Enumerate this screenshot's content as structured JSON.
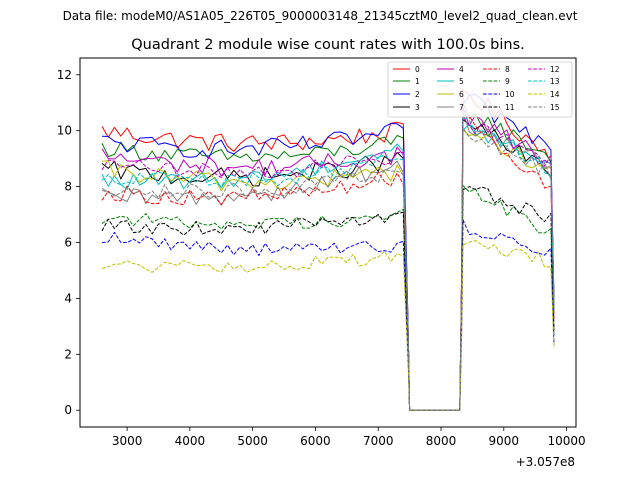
{
  "chart_data": {
    "type": "line",
    "suptitle": "Data file: modeM0/AS1A05_226T05_9000003148_21345cztM0_level2_quad_clean.evt",
    "title": "Quadrant 2 module wise count rates with 100.0s bins.",
    "xlabel": "",
    "ylabel": "",
    "x_offset_label": "+3.057e8",
    "xlim": [
      2250,
      10150
    ],
    "ylim": [
      -0.6,
      12.6
    ],
    "xticks": [
      3000,
      4000,
      5000,
      6000,
      7000,
      8000,
      9000,
      10000
    ],
    "yticks": [
      0,
      2,
      4,
      6,
      8,
      10,
      12
    ],
    "legend_location": "upper right",
    "legend_ncol": 4,
    "gap": {
      "start": 7500,
      "end": 8300,
      "value": 0
    },
    "x_segment1": [
      2600,
      7450
    ],
    "x_segment2": [
      8350,
      9800
    ],
    "series": [
      {
        "name": "0",
        "color": "#ff0000",
        "linestyle": "solid",
        "seg1_start": 10.0,
        "seg1_end": 10.0,
        "seg2_peak": 11.5,
        "seg2_end": 9.0,
        "noise": 0.35
      },
      {
        "name": "1",
        "color": "#008000",
        "linestyle": "solid",
        "seg1_start": 9.4,
        "seg1_end": 9.6,
        "seg2_peak": 10.8,
        "seg2_end": 9.0,
        "noise": 0.3
      },
      {
        "name": "2",
        "color": "#0000ff",
        "linestyle": "solid",
        "seg1_start": 9.6,
        "seg1_end": 10.0,
        "seg2_peak": 11.2,
        "seg2_end": 9.4,
        "noise": 0.35
      },
      {
        "name": "3",
        "color": "#000000",
        "linestyle": "solid",
        "seg1_start": 8.6,
        "seg1_end": 9.0,
        "seg2_peak": 10.4,
        "seg2_end": 8.4,
        "noise": 0.35
      },
      {
        "name": "4",
        "color": "#bf00bf",
        "linestyle": "solid",
        "seg1_start": 9.1,
        "seg1_end": 9.2,
        "seg2_peak": 10.6,
        "seg2_end": 8.8,
        "noise": 0.35
      },
      {
        "name": "5",
        "color": "#00bfbf",
        "linestyle": "solid",
        "seg1_start": 8.2,
        "seg1_end": 9.4,
        "seg2_peak": 10.2,
        "seg2_end": 8.8,
        "noise": 0.3
      },
      {
        "name": "6",
        "color": "#bfbf00",
        "linestyle": "solid",
        "seg1_start": 8.6,
        "seg1_end": 8.6,
        "seg2_peak": 10.0,
        "seg2_end": 8.6,
        "noise": 0.35
      },
      {
        "name": "7",
        "color": "#808080",
        "linestyle": "solid",
        "seg1_start": 7.6,
        "seg1_end": 8.8,
        "seg2_peak": 10.4,
        "seg2_end": 8.6,
        "noise": 0.35
      },
      {
        "name": "8",
        "color": "#ff0000",
        "linestyle": "dashed",
        "seg1_start": 7.8,
        "seg1_end": 8.4,
        "seg2_peak": 10.6,
        "seg2_end": 7.8,
        "noise": 0.3
      },
      {
        "name": "9",
        "color": "#008000",
        "linestyle": "dashed",
        "seg1_start": 6.9,
        "seg1_end": 7.0,
        "seg2_peak": 8.0,
        "seg2_end": 6.3,
        "noise": 0.25
      },
      {
        "name": "10",
        "color": "#0000ff",
        "linestyle": "dashed",
        "seg1_start": 6.2,
        "seg1_end": 5.9,
        "seg2_peak": 6.6,
        "seg2_end": 5.6,
        "noise": 0.25
      },
      {
        "name": "11",
        "color": "#000000",
        "linestyle": "dashed",
        "seg1_start": 6.6,
        "seg1_end": 7.0,
        "seg2_peak": 8.0,
        "seg2_end": 6.8,
        "noise": 0.25
      },
      {
        "name": "12",
        "color": "#bf00bf",
        "linestyle": "dashed",
        "seg1_start": 8.8,
        "seg1_end": 9.2,
        "seg2_peak": 10.4,
        "seg2_end": 8.8,
        "noise": 0.3
      },
      {
        "name": "13",
        "color": "#00bfbf",
        "linestyle": "dashed",
        "seg1_start": 8.4,
        "seg1_end": 9.0,
        "seg2_peak": 10.2,
        "seg2_end": 8.6,
        "noise": 0.3
      },
      {
        "name": "14",
        "color": "#bfbf00",
        "linestyle": "dashed",
        "seg1_start": 5.2,
        "seg1_end": 5.6,
        "seg2_peak": 6.0,
        "seg2_end": 5.3,
        "noise": 0.25
      },
      {
        "name": "15",
        "color": "#808080",
        "linestyle": "dashed",
        "seg1_start": 8.0,
        "seg1_end": 8.6,
        "seg2_peak": 10.0,
        "seg2_end": 8.4,
        "noise": 0.3
      }
    ]
  }
}
